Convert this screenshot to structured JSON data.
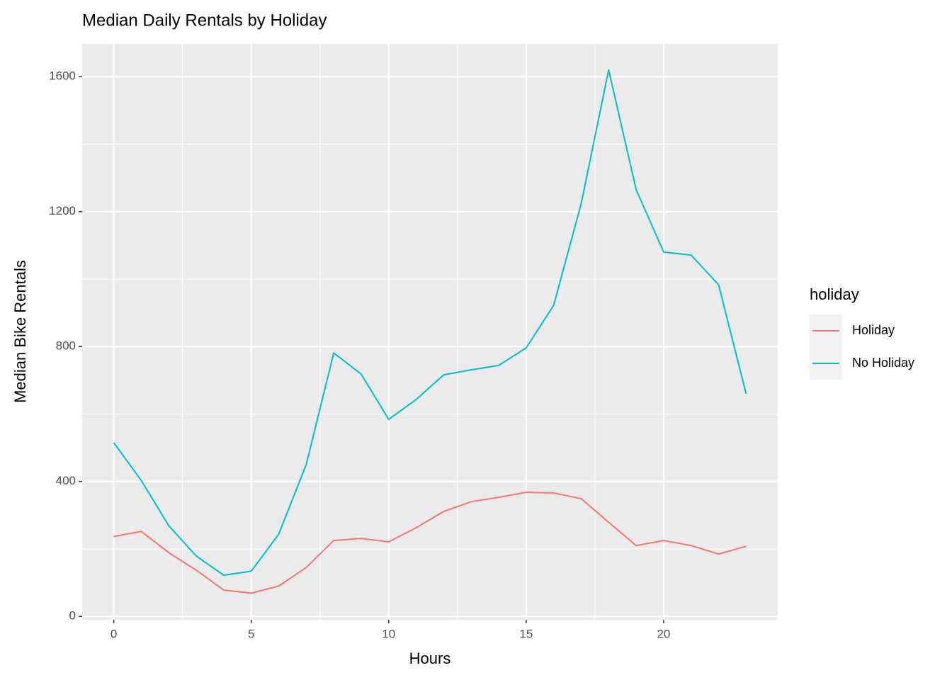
{
  "chart_data": {
    "type": "line",
    "title": "Median Daily Rentals by Holiday",
    "x_label": "Hours",
    "y_label": "Median Bike Rentals",
    "legend_title": "holiday",
    "legend_position": "right",
    "x": [
      0,
      1,
      2,
      3,
      4,
      5,
      6,
      7,
      8,
      9,
      10,
      11,
      12,
      13,
      14,
      15,
      16,
      17,
      18,
      19,
      20,
      21,
      22,
      23
    ],
    "series": [
      {
        "name": "Holiday",
        "color": "#F8766D",
        "values": [
          237,
          252,
          189,
          137,
          78,
          69,
          90,
          145,
          225,
          231,
          221,
          263,
          311,
          340,
          353,
          368,
          366,
          349,
          279,
          210,
          225,
          210,
          185,
          208
        ]
      },
      {
        "name": "No Holiday",
        "color": "#00BFC4",
        "values": [
          515,
          403,
          269,
          179,
          122,
          134,
          244,
          450,
          781,
          718,
          584,
          643,
          716,
          731,
          744,
          796,
          922,
          1223,
          1620,
          1265,
          1080,
          1071,
          983,
          660
        ]
      }
    ],
    "xlim": [
      -1.15,
      24.15
    ],
    "ylim": [
      -10,
      1697
    ],
    "xticks": [
      0,
      5,
      10,
      15,
      20
    ],
    "yticks": [
      0,
      400,
      800,
      1200,
      1600
    ],
    "grid": true
  }
}
